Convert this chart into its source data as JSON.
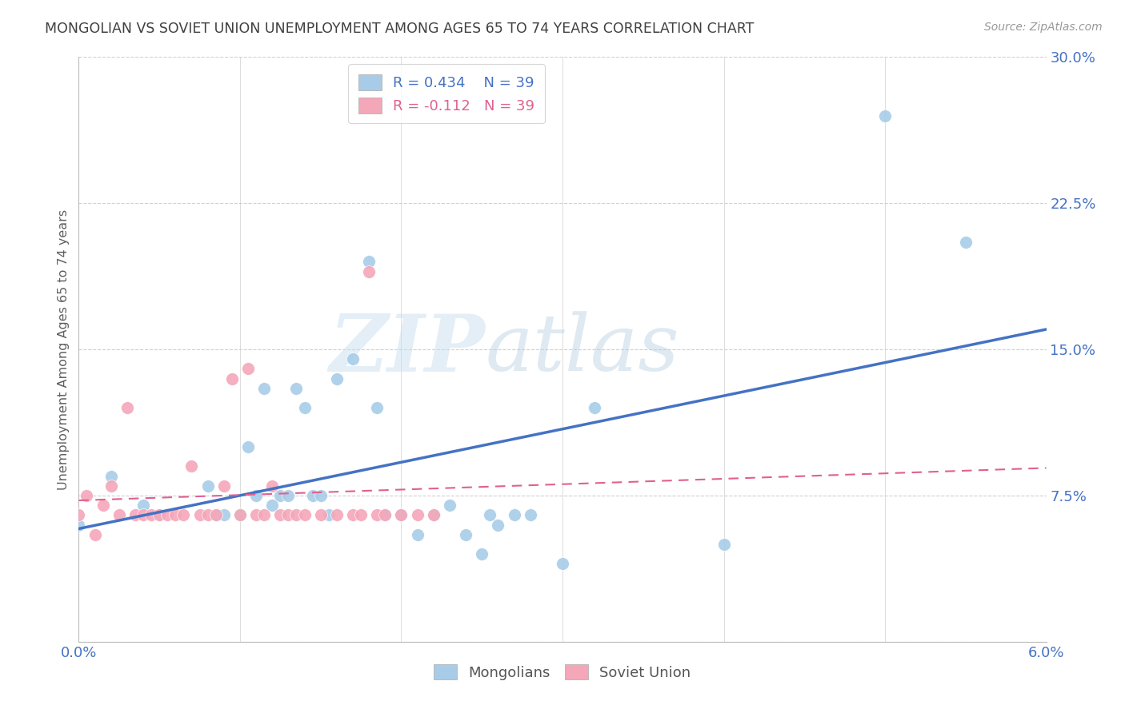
{
  "title": "MONGOLIAN VS SOVIET UNION UNEMPLOYMENT AMONG AGES 65 TO 74 YEARS CORRELATION CHART",
  "source": "Source: ZipAtlas.com",
  "ylabel": "Unemployment Among Ages 65 to 74 years",
  "x_min": 0.0,
  "x_max": 6.0,
  "y_min": 0.0,
  "y_max": 30.0,
  "x_ticks": [
    0.0,
    1.0,
    2.0,
    3.0,
    4.0,
    5.0,
    6.0
  ],
  "x_tick_labels": [
    "0.0%",
    "",
    "",
    "",
    "",
    "",
    "6.0%"
  ],
  "y_ticks_right": [
    0.0,
    7.5,
    15.0,
    22.5,
    30.0
  ],
  "y_tick_labels_right": [
    "",
    "7.5%",
    "15.0%",
    "22.5%",
    "30.0%"
  ],
  "legend_blue_r": "R = 0.434",
  "legend_blue_n": "N = 39",
  "legend_pink_r": "R = -0.112",
  "legend_pink_n": "N = 39",
  "blue_color": "#a8cce8",
  "pink_color": "#f4a7b9",
  "blue_line_color": "#4472c4",
  "pink_line_color": "#e06090",
  "watermark_zip": "ZIP",
  "watermark_atlas": "atlas",
  "title_color": "#404040",
  "axis_label_color": "#606060",
  "tick_color": "#4472c4",
  "grid_color": "#d0d0d0",
  "mongolians_x": [
    0.0,
    0.2,
    0.4,
    0.5,
    0.8,
    0.85,
    0.9,
    1.0,
    1.05,
    1.1,
    1.15,
    1.2,
    1.25,
    1.3,
    1.35,
    1.4,
    1.45,
    1.5,
    1.55,
    1.6,
    1.7,
    1.8,
    1.85,
    1.9,
    2.0,
    2.1,
    2.2,
    2.3,
    2.4,
    2.5,
    2.55,
    2.6,
    2.7,
    2.8,
    3.0,
    3.2,
    4.0,
    5.0,
    5.5
  ],
  "mongolians_y": [
    6.0,
    8.5,
    7.0,
    6.5,
    8.0,
    6.5,
    6.5,
    6.5,
    10.0,
    7.5,
    13.0,
    7.0,
    7.5,
    7.5,
    13.0,
    12.0,
    7.5,
    7.5,
    6.5,
    13.5,
    14.5,
    19.5,
    12.0,
    6.5,
    6.5,
    5.5,
    6.5,
    7.0,
    5.5,
    4.5,
    6.5,
    6.0,
    6.5,
    6.5,
    4.0,
    12.0,
    5.0,
    27.0,
    20.5
  ],
  "soviet_x": [
    0.0,
    0.05,
    0.1,
    0.15,
    0.2,
    0.25,
    0.3,
    0.35,
    0.4,
    0.45,
    0.5,
    0.55,
    0.6,
    0.65,
    0.7,
    0.75,
    0.8,
    0.85,
    0.9,
    0.95,
    1.0,
    1.05,
    1.1,
    1.15,
    1.2,
    1.25,
    1.3,
    1.35,
    1.4,
    1.5,
    1.6,
    1.7,
    1.75,
    1.8,
    1.85,
    1.9,
    2.0,
    2.1,
    2.2
  ],
  "soviet_y": [
    6.5,
    7.5,
    5.5,
    7.0,
    8.0,
    6.5,
    12.0,
    6.5,
    6.5,
    6.5,
    6.5,
    6.5,
    6.5,
    6.5,
    9.0,
    6.5,
    6.5,
    6.5,
    8.0,
    13.5,
    6.5,
    14.0,
    6.5,
    6.5,
    8.0,
    6.5,
    6.5,
    6.5,
    6.5,
    6.5,
    6.5,
    6.5,
    6.5,
    19.0,
    6.5,
    6.5,
    6.5,
    6.5,
    6.5
  ]
}
